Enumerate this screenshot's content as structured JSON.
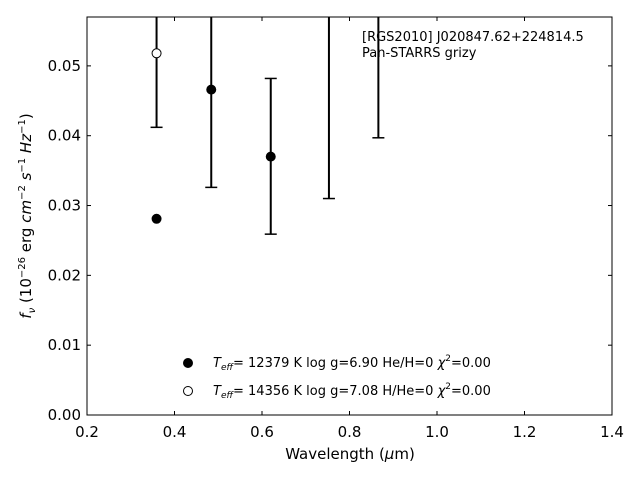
{
  "chart_data": {
    "type": "scatter",
    "title_lines": [
      "[RGS2010] J020847.62+224814.5",
      "Pan-STARRS grizy"
    ],
    "xlabel": {
      "pre": "Wavelength (",
      "greek": "μ",
      "post": "m)"
    },
    "ylabel": {
      "f": "f",
      "sub": "ν",
      "open": " (10",
      "exp": "−26",
      "mid1": " erg ",
      "cm": "cm",
      "cmexp": "−2",
      "s": " s",
      "sexp": "−1",
      "hz": " Hz",
      "hzexp": "−1",
      "close": ")"
    },
    "xlim": [
      0.2,
      1.4
    ],
    "ylim": [
      0.0,
      0.057
    ],
    "xticks": [
      0.2,
      0.4,
      0.6,
      0.8,
      1.0,
      1.2,
      1.4
    ],
    "xtick_labels": [
      "0.2",
      "0.4",
      "0.6",
      "0.8",
      "1.0",
      "1.2",
      "1.4"
    ],
    "yticks": [
      0.0,
      0.01,
      0.02,
      0.03,
      0.04,
      0.05
    ],
    "ytick_labels": [
      "0.00",
      "0.01",
      "0.02",
      "0.03",
      "0.04",
      "0.05"
    ],
    "grid": false,
    "legend_placement": "lower-center",
    "observed": [
      {
        "x": 0.359,
        "lo": 0.0412,
        "hi": 0.057
      },
      {
        "x": 0.484,
        "lo": 0.0326,
        "hi": 0.057
      },
      {
        "x": 0.62,
        "lo": 0.0259,
        "hi": 0.0482
      },
      {
        "x": 0.753,
        "lo": 0.031,
        "hi": 0.057
      },
      {
        "x": 0.866,
        "lo": 0.0397,
        "hi": 0.057
      }
    ],
    "series": [
      {
        "marker": "filled",
        "points": [
          {
            "x": 0.359,
            "y": 0.0281
          },
          {
            "x": 0.484,
            "y": 0.0466
          },
          {
            "x": 0.62,
            "y": 0.037
          }
        ],
        "legend": {
          "teff": "T",
          "eff": "eff",
          "text": "= 12379 K  log g=6.90  He/H=0  ",
          "chi": "χ",
          "chi_exp": "2",
          "chi_val": "=0.00"
        }
      },
      {
        "marker": "open",
        "points": [
          {
            "x": 0.359,
            "y": 0.0518
          }
        ],
        "legend": {
          "teff": "T",
          "eff": "eff",
          "text": "= 14356 K  log g=7.08  H/He=0  ",
          "chi": "χ",
          "chi_exp": "2",
          "chi_val": "=0.00"
        }
      }
    ]
  }
}
